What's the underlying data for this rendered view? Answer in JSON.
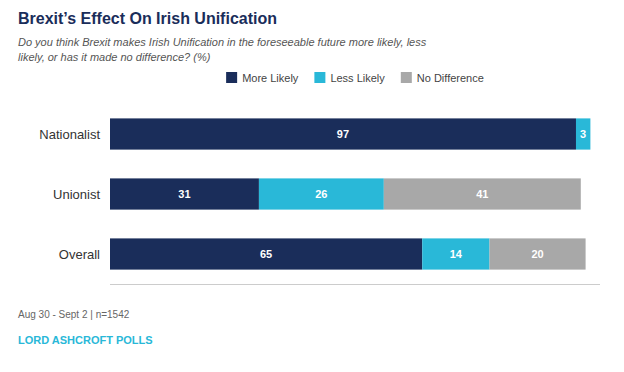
{
  "chart_data": {
    "type": "bar",
    "orientation": "horizontal",
    "stacked": true,
    "data_labels": true,
    "title": "Brexit’s Effect On Irish Unification",
    "subtitle": "Do you think Brexit makes Irish Unification in the foreseeable future more likely, less\nlikely, or has it made no difference? (%)",
    "annotations": [
      "Aug 30 - Sept 2 | n=1542",
      "LORD ASHCROFT POLLS"
    ],
    "categories": [
      "Nationalist",
      "Unionist",
      "Overall"
    ],
    "series": [
      {
        "name": "More Likely",
        "color": "#1a2d5a",
        "values": [
          97,
          31,
          65
        ]
      },
      {
        "name": "Less Likely",
        "color": "#29b8d8",
        "values": [
          3,
          26,
          14
        ]
      },
      {
        "name": "No Difference",
        "color": "#a8a8a8",
        "values": [
          0,
          41,
          20
        ]
      }
    ],
    "xlim": [
      0,
      102
    ],
    "legend": "top",
    "tick_labels": "y",
    "grid": false
  }
}
